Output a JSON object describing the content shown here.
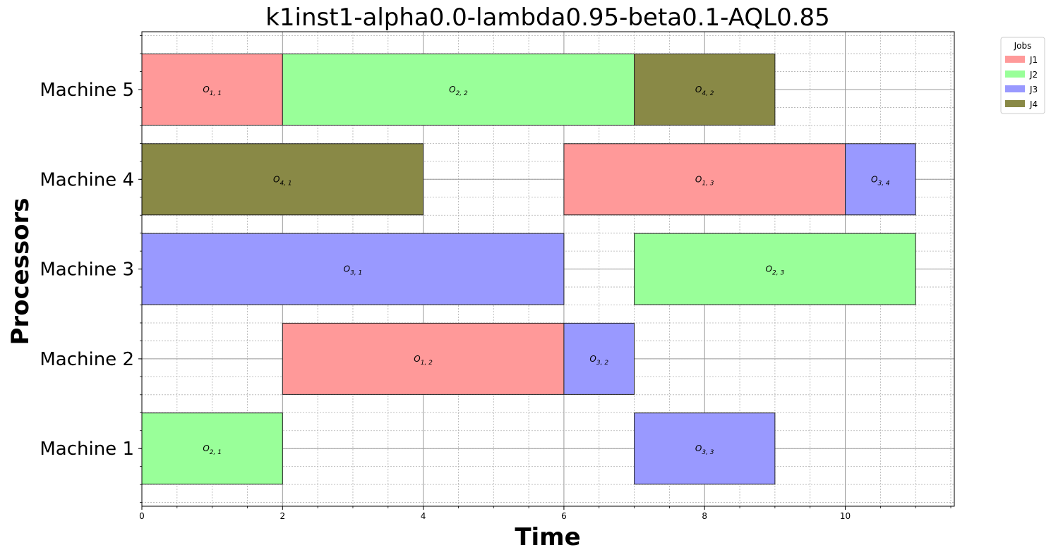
{
  "chart_data": {
    "type": "gantt",
    "title": "k1inst1-alpha0.0-lambda0.95-beta0.1-AQL0.85",
    "xlabel": "Time",
    "ylabel": "Processors",
    "xlim": [
      0,
      11.55
    ],
    "xticks": [
      0,
      2,
      4,
      6,
      8,
      10
    ],
    "xtick_labels": [
      "0",
      "2",
      "4",
      "6",
      "8",
      "10"
    ],
    "machines": [
      "Machine 1",
      "Machine 2",
      "Machine 3",
      "Machine 4",
      "Machine 5"
    ],
    "grid": true,
    "legend": {
      "title": "Jobs",
      "placement": "outside-top-right",
      "entries": [
        {
          "name": "J1",
          "color": "#ff9999"
        },
        {
          "name": "J2",
          "color": "#99ff99"
        },
        {
          "name": "J3",
          "color": "#9999ff"
        },
        {
          "name": "J4",
          "color": "#898946"
        }
      ]
    },
    "tasks": [
      {
        "machine": "Machine 5",
        "job": "J1",
        "label": "O",
        "sub": "1, 1",
        "start": 0,
        "end": 2
      },
      {
        "machine": "Machine 5",
        "job": "J2",
        "label": "O",
        "sub": "2, 2",
        "start": 2,
        "end": 7
      },
      {
        "machine": "Machine 5",
        "job": "J4",
        "label": "O",
        "sub": "4, 2",
        "start": 7,
        "end": 9
      },
      {
        "machine": "Machine 4",
        "job": "J4",
        "label": "O",
        "sub": "4, 1",
        "start": 0,
        "end": 4
      },
      {
        "machine": "Machine 4",
        "job": "J1",
        "label": "O",
        "sub": "1, 3",
        "start": 6,
        "end": 10
      },
      {
        "machine": "Machine 4",
        "job": "J3",
        "label": "O",
        "sub": "3, 4",
        "start": 10,
        "end": 11
      },
      {
        "machine": "Machine 3",
        "job": "J3",
        "label": "O",
        "sub": "3, 1",
        "start": 0,
        "end": 6
      },
      {
        "machine": "Machine 3",
        "job": "J2",
        "label": "O",
        "sub": "2, 3",
        "start": 7,
        "end": 11
      },
      {
        "machine": "Machine 2",
        "job": "J1",
        "label": "O",
        "sub": "1, 2",
        "start": 2,
        "end": 6
      },
      {
        "machine": "Machine 2",
        "job": "J3",
        "label": "O",
        "sub": "3, 2",
        "start": 6,
        "end": 7
      },
      {
        "machine": "Machine 1",
        "job": "J2",
        "label": "O",
        "sub": "2, 1",
        "start": 0,
        "end": 2
      },
      {
        "machine": "Machine 1",
        "job": "J3",
        "label": "O",
        "sub": "3, 3",
        "start": 7,
        "end": 9
      }
    ]
  }
}
